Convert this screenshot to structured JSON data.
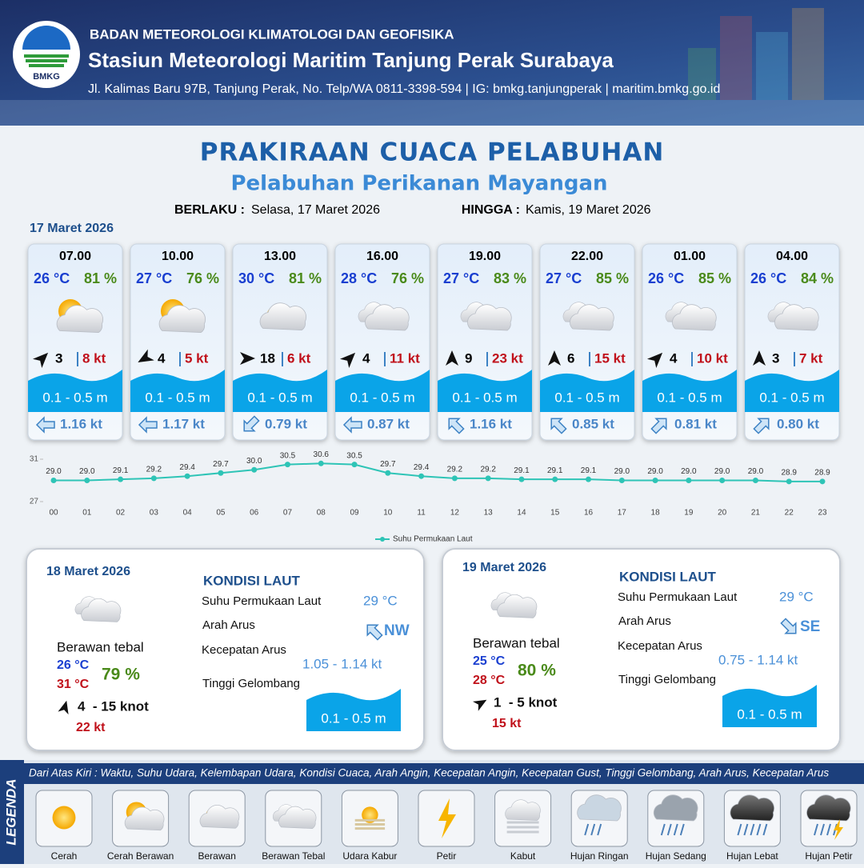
{
  "header": {
    "logo_text": "BMKG",
    "organization": "BADAN METEOROLOGI KLIMATOLOGI DAN GEOFISIKA",
    "station": "Stasiun Meteorologi Maritim Tanjung Perak Surabaya",
    "address": "Jl. Kalimas Baru 97B, Tanjung Perak, No. Telp/WA 0811-3398-594 | IG: bmkg.tanjungperak | maritim.bmkg.go.id"
  },
  "title": "PRAKIRAAN CUACA PELABUHAN",
  "subtitle": "Pelabuhan Perikanan Mayangan",
  "validity": {
    "from_label": "BERLAKU :",
    "from": "Selasa, 17 Maret 2026",
    "to_label": "HINGGA :",
    "to": "Kamis, 19 Maret 2026"
  },
  "today": {
    "date": "17 Maret 2026",
    "forecasts": [
      {
        "time": "07.00",
        "temperature": "26 °C",
        "humidity": "81 %",
        "wind_speed": "3",
        "gust": "8 kt",
        "wave_height": "0.1 - 0.5 m",
        "current_speed": "1.16 kt"
      },
      {
        "time": "10.00",
        "temperature": "27 °C",
        "humidity": "76 %",
        "wind_speed": "4",
        "gust": "5 kt",
        "wave_height": "0.1 - 0.5 m",
        "current_speed": "1.17 kt"
      },
      {
        "time": "13.00",
        "temperature": "30 °C",
        "humidity": "81 %",
        "wind_speed": "18",
        "gust": "6 kt",
        "wave_height": "0.1 - 0.5 m",
        "current_speed": "0.79 kt"
      },
      {
        "time": "16.00",
        "temperature": "28 °C",
        "humidity": "76 %",
        "wind_speed": "4",
        "gust": "11 kt",
        "wave_height": "0.1 - 0.5 m",
        "current_speed": "0.87 kt"
      },
      {
        "time": "19.00",
        "temperature": "27 °C",
        "humidity": "83 %",
        "wind_speed": "9",
        "gust": "23 kt",
        "wave_height": "0.1 - 0.5 m",
        "current_speed": "1.16 kt"
      },
      {
        "time": "22.00",
        "temperature": "27 °C",
        "humidity": "85 %",
        "wind_speed": "6",
        "gust": "15 kt",
        "wave_height": "0.1 - 0.5 m",
        "current_speed": "0.85 kt"
      },
      {
        "time": "01.00",
        "temperature": "26 °C",
        "humidity": "85 %",
        "wind_speed": "4",
        "gust": "10 kt",
        "wave_height": "0.1 - 0.5 m",
        "current_speed": "0.81 kt"
      },
      {
        "time": "04.00",
        "temperature": "26 °C",
        "humidity": "84 %",
        "wind_speed": "3",
        "gust": "7 kt",
        "wave_height": "0.1 - 0.5 m",
        "current_speed": "0.80 kt"
      }
    ]
  },
  "chart_data": {
    "type": "line",
    "categories": [
      "00",
      "01",
      "02",
      "03",
      "04",
      "05",
      "06",
      "07",
      "08",
      "09",
      "10",
      "11",
      "12",
      "13",
      "14",
      "15",
      "16",
      "17",
      "18",
      "19",
      "20",
      "21",
      "22",
      "23"
    ],
    "series": [
      {
        "name": "Suhu Permukaan Laut",
        "color": "#2ec4b6",
        "values": [
          29.0,
          29.0,
          29.1,
          29.2,
          29.4,
          29.7,
          30.0,
          30.5,
          30.6,
          30.5,
          29.7,
          29.4,
          29.2,
          29.2,
          29.1,
          29.1,
          29.1,
          29.0,
          29.0,
          29.0,
          29.0,
          29.0,
          28.9,
          28.9
        ],
        "value_labels": [
          "29.0",
          "29.0",
          "29.1",
          "29.2",
          "29.4",
          "29.7",
          "30.0",
          "30.5",
          "30.6",
          "30.5",
          "29.7",
          "29.4",
          "29.2",
          "29.2",
          "29.1",
          "29.1",
          "29.1",
          "29.0",
          "29.0",
          "29.0",
          "29.0",
          "29.0",
          "28.9",
          "28.9"
        ]
      }
    ],
    "ylim": [
      27,
      31
    ],
    "yticks": [
      27,
      31
    ],
    "legend": "bottom"
  },
  "outlook": [
    {
      "date": "18 Maret 2026",
      "condition": "Berawan tebal",
      "temp_min": "26 °C",
      "temp_max": "31 °C",
      "humidity": "79 %",
      "wind": "4  - 15 knot",
      "gust": "22 kt",
      "sea_heading": "KONDISI LAUT",
      "sst_label": "Suhu Permukaan Laut",
      "sst": "29 °C",
      "current_dir_label": "Arah Arus",
      "current_dir": "NW",
      "current_speed_label": "Kecepatan Arus",
      "current_speed": "1.05 - 1.14 kt",
      "wave_label": "Tinggi Gelombang",
      "wave": "0.1 - 0.5 m"
    },
    {
      "date": "19 Maret 2026",
      "condition": "Berawan tebal",
      "temp_min": "25 °C",
      "temp_max": "28 °C",
      "humidity": "80 %",
      "wind": "1  - 5 knot",
      "gust": "15 kt",
      "sea_heading": "KONDISI LAUT",
      "sst_label": "Suhu Permukaan Laut",
      "sst": "29 °C",
      "current_dir_label": "Arah Arus",
      "current_dir": "SE",
      "current_speed_label": "Kecepatan Arus",
      "current_speed": "0.75 - 1.14 kt",
      "wave_label": "Tinggi Gelombang",
      "wave": "0.1 - 0.5 m"
    }
  ],
  "legend": {
    "title": "LEGENDA",
    "description": "Dari Atas Kiri : Waktu, Suhu Udara, Kelembapan Udara, Kondisi Cuaca, Arah Angin, Kecepatan Angin, Kecepatan Gust, Tinggi Gelombang, Arah Arus, Kecepatan Arus",
    "items": [
      "Cerah",
      "Cerah Berawan",
      "Berawan",
      "Berawan Tebal",
      "Udara Kabur",
      "Petir",
      "Kabut",
      "Hujan Ringan",
      "Hujan Sedang",
      "Hujan Lebat",
      "Hujan Petir"
    ]
  }
}
